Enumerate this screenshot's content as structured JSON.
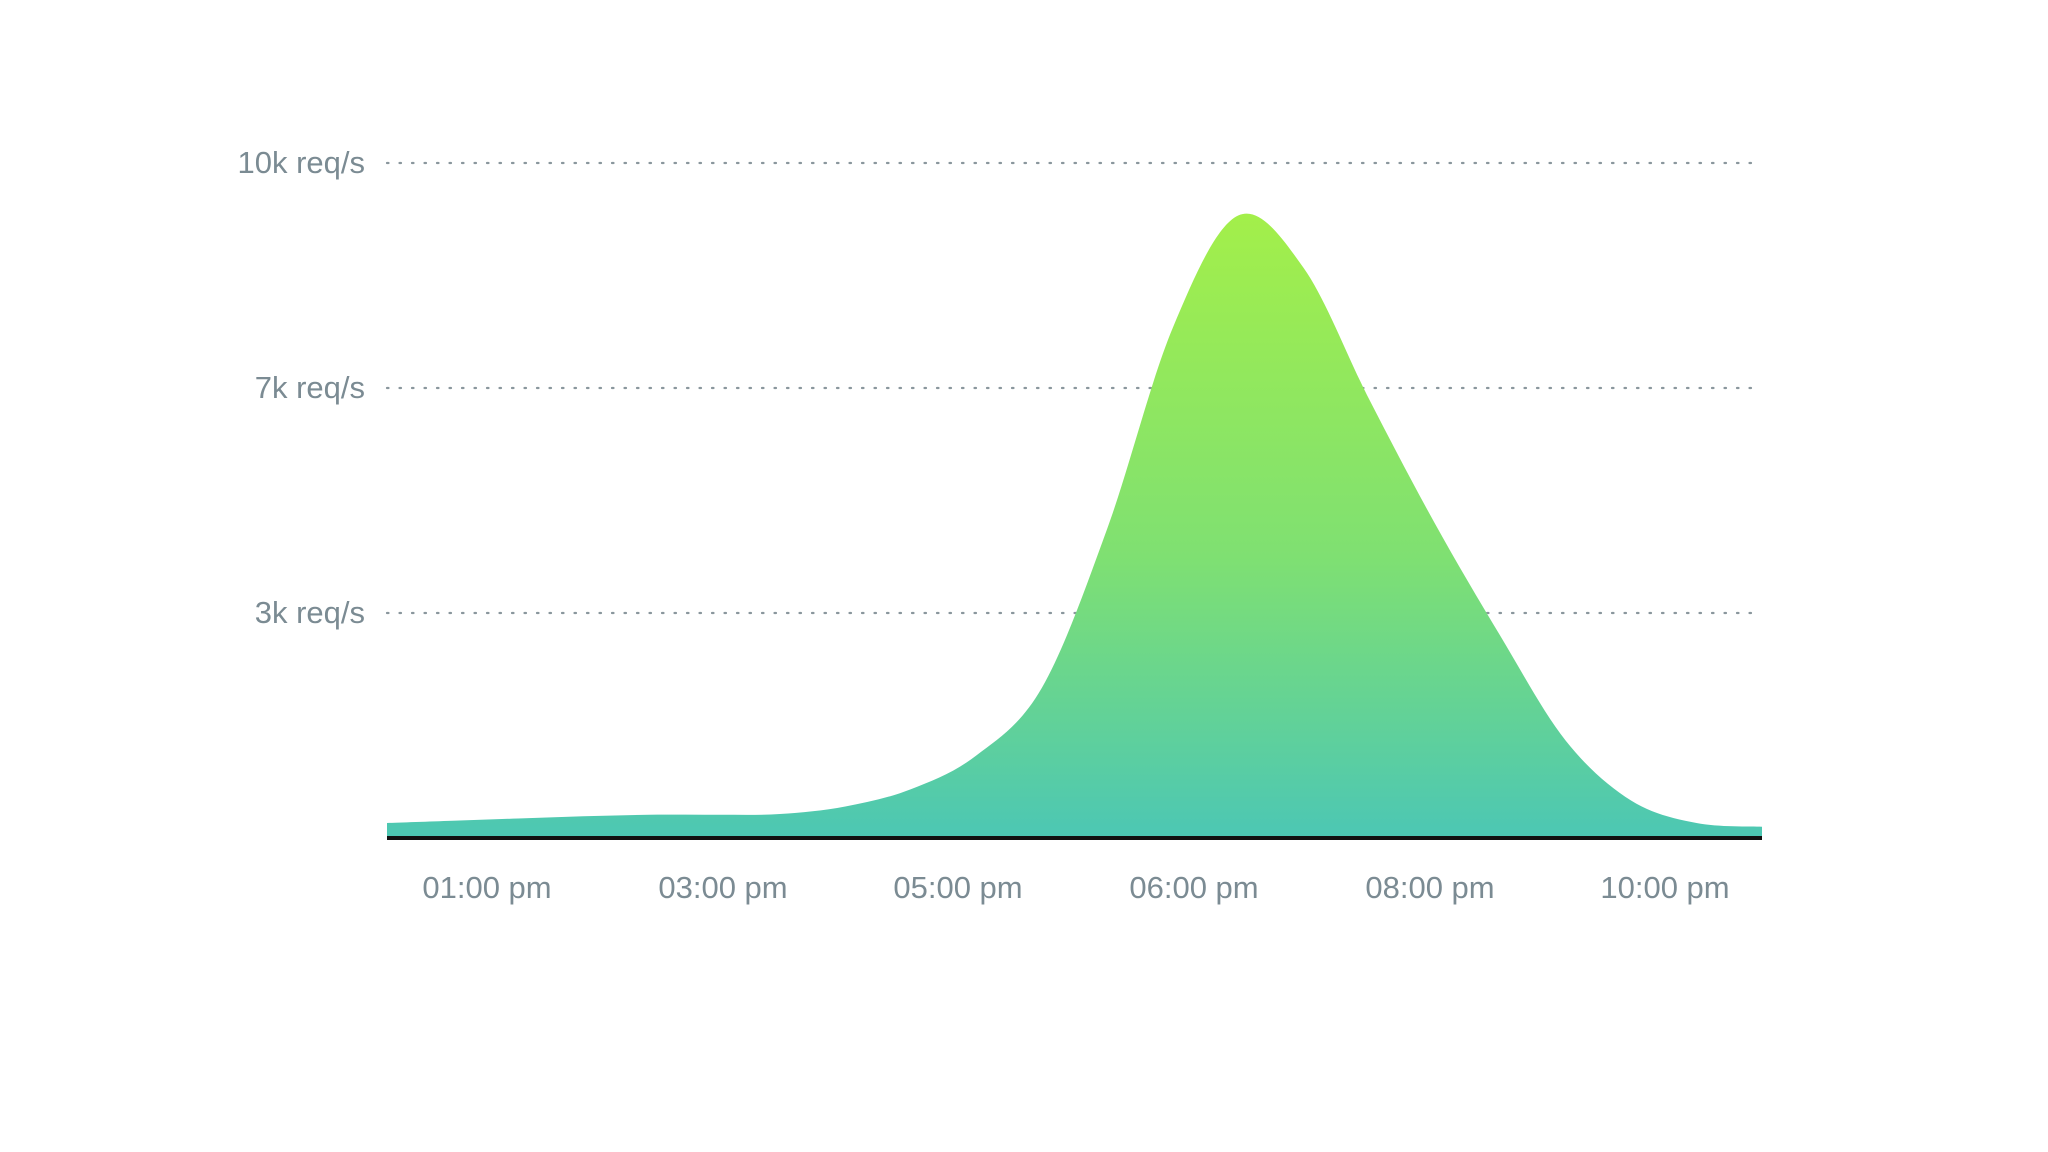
{
  "chart_data": {
    "type": "area",
    "title": "",
    "xlabel": "",
    "ylabel": "",
    "x_tick_labels": [
      "01:00 pm",
      "03:00 pm",
      "05:00 pm",
      "06:00 pm",
      "08:00 pm",
      "10:00 pm"
    ],
    "y_tick_labels": [
      "10k req/s",
      "7k req/s",
      "3k req/s"
    ],
    "grid": "horizontal dotted",
    "legend": "none",
    "colors": {
      "fill_top": "#a3ef4a",
      "fill_mid": "#7fe072",
      "fill_bottom": "#4cc7b4",
      "tick_text": "#7b8b93",
      "grid": "#8a979d",
      "axis": "#111111"
    },
    "series": [
      {
        "values": [
          200,
          230,
          260,
          290,
          310,
          310,
          320,
          420,
          650,
          1100,
          2000,
          4500,
          7800,
          9300,
          8600,
          6800,
          4600,
          2700,
          1300,
          500,
          200,
          150
        ]
      }
    ]
  }
}
